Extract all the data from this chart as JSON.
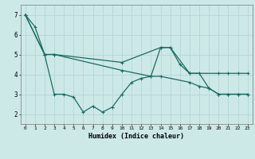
{
  "title": "",
  "xlabel": "Humidex (Indice chaleur)",
  "bg_color": "#cce9e8",
  "grid_color": "#b8d8d7",
  "line_color": "#1a6b60",
  "x_ticks": [
    0,
    1,
    2,
    3,
    4,
    5,
    6,
    7,
    8,
    9,
    10,
    11,
    12,
    13,
    14,
    15,
    16,
    17,
    18,
    19,
    20,
    21,
    22,
    23
  ],
  "ylim": [
    1.5,
    7.5
  ],
  "xlim": [
    -0.5,
    23.5
  ],
  "yticks": [
    2,
    3,
    4,
    5,
    6,
    7
  ],
  "series1_x": [
    0,
    1,
    2,
    3,
    4,
    5,
    6,
    7,
    8,
    9,
    10,
    11,
    12,
    13,
    14,
    15,
    16,
    17,
    18,
    19,
    20,
    21,
    22,
    23
  ],
  "series1_y": [
    7.0,
    6.4,
    5.0,
    3.0,
    3.0,
    2.85,
    2.1,
    2.4,
    2.1,
    2.35,
    3.0,
    3.6,
    3.8,
    3.9,
    5.35,
    5.35,
    4.5,
    4.05,
    4.05,
    3.3,
    3.0,
    3.0,
    3.0,
    3.0
  ],
  "series2_x": [
    0,
    2,
    3,
    10,
    14,
    15,
    17,
    20,
    21,
    22,
    23
  ],
  "series2_y": [
    7.0,
    5.0,
    5.0,
    4.6,
    5.35,
    5.35,
    4.05,
    4.05,
    4.05,
    4.05,
    4.05
  ],
  "series3_x": [
    0,
    2,
    3,
    10,
    13,
    14,
    17,
    18,
    19,
    20,
    21,
    22,
    23
  ],
  "series3_y": [
    7.0,
    5.0,
    5.0,
    4.2,
    3.9,
    3.9,
    3.6,
    3.4,
    3.3,
    3.0,
    3.0,
    3.0,
    3.0
  ]
}
